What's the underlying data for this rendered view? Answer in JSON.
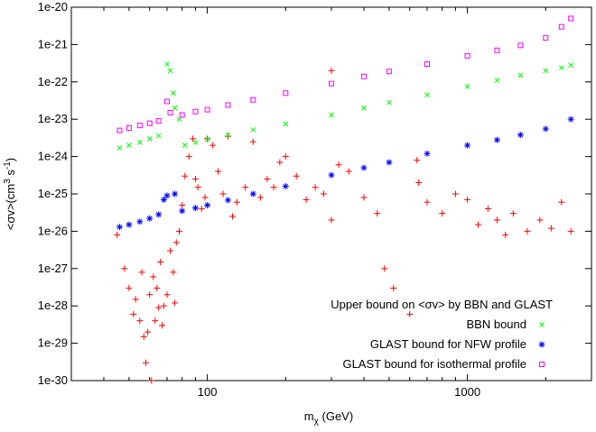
{
  "chart_data": {
    "type": "scatter",
    "title": "",
    "xlabel": "m",
    "xlabel_sub": "χ",
    "xlabel_unit": " (GeV)",
    "ylabel": "<σv>(cm",
    "ylabel_sup1": "3",
    "ylabel_mid": " s",
    "ylabel_sup2": "-1",
    "ylabel_end": ")",
    "x_scale": "log",
    "y_scale": "log",
    "xlim": [
      30,
      3000
    ],
    "ylim": [
      1e-30,
      1e-20
    ],
    "x_ticks": [
      {
        "value": 100,
        "label": "100"
      },
      {
        "value": 1000,
        "label": "1000"
      }
    ],
    "y_ticks": [
      {
        "value": 1e-20,
        "label": "1e-20"
      },
      {
        "value": 1e-21,
        "label": "1e-21"
      },
      {
        "value": 1e-22,
        "label": "1e-22"
      },
      {
        "value": 1e-23,
        "label": "1e-23"
      },
      {
        "value": 1e-24,
        "label": "1e-24"
      },
      {
        "value": 1e-25,
        "label": "1e-25"
      },
      {
        "value": 1e-26,
        "label": "1e-26"
      },
      {
        "value": 1e-27,
        "label": "1e-27"
      },
      {
        "value": 1e-28,
        "label": "1e-28"
      },
      {
        "value": 1e-29,
        "label": "1e-29"
      },
      {
        "value": 1e-30,
        "label": "1e-30"
      }
    ],
    "grid": false,
    "legend_position": "bottom-right",
    "legend_title": "Upper bound on <σv> by BBN and GLAST",
    "series": [
      {
        "name": "",
        "marker": "plus",
        "color": "#ff0000",
        "points": [
          [
            45,
            8e-27
          ],
          [
            48,
            1e-27
          ],
          [
            50,
            3e-28
          ],
          [
            52,
            6e-29
          ],
          [
            53,
            1.5e-28
          ],
          [
            55,
            4e-29
          ],
          [
            56,
            8e-28
          ],
          [
            57,
            1.5e-29
          ],
          [
            58,
            3e-30
          ],
          [
            59,
            2e-29
          ],
          [
            60,
            2e-28
          ],
          [
            61,
            1e-30
          ],
          [
            62,
            6e-28
          ],
          [
            63,
            4e-29
          ],
          [
            64,
            3e-28
          ],
          [
            65,
            9e-29
          ],
          [
            66,
            1.5e-27
          ],
          [
            67,
            3e-29
          ],
          [
            68,
            1e-28
          ],
          [
            70,
            2e-28
          ],
          [
            72,
            3e-27
          ],
          [
            74,
            8e-28
          ],
          [
            75,
            1.2e-28
          ],
          [
            76,
            5e-27
          ],
          [
            78,
            1e-26
          ],
          [
            80,
            5e-26
          ],
          [
            82,
            3e-25
          ],
          [
            85,
            1e-24
          ],
          [
            88,
            3e-24
          ],
          [
            90,
            2.5e-25
          ],
          [
            92,
            1.5e-25
          ],
          [
            95,
            4e-26
          ],
          [
            98,
            8e-26
          ],
          [
            100,
            3e-24
          ],
          [
            105,
            2e-24
          ],
          [
            110,
            4e-25
          ],
          [
            115,
            1e-25
          ],
          [
            120,
            3.5e-24
          ],
          [
            125,
            2.5e-26
          ],
          [
            130,
            6e-26
          ],
          [
            140,
            1.5e-25
          ],
          [
            150,
            2.5e-24
          ],
          [
            160,
            8e-26
          ],
          [
            170,
            2.5e-25
          ],
          [
            180,
            1.5e-25
          ],
          [
            190,
            7e-25
          ],
          [
            200,
            1e-24
          ],
          [
            220,
            3e-25
          ],
          [
            240,
            7e-26
          ],
          [
            260,
            1.5e-25
          ],
          [
            280,
            1e-25
          ],
          [
            300,
            2e-26
          ],
          [
            320,
            6e-25
          ],
          [
            350,
            4e-25
          ],
          [
            400,
            8e-26
          ],
          [
            450,
            3e-26
          ],
          [
            480,
            1e-27
          ],
          [
            520,
            3e-28
          ],
          [
            600,
            6e-29
          ],
          [
            650,
            2e-25
          ],
          [
            700,
            6e-26
          ],
          [
            800,
            3e-26
          ],
          [
            900,
            1e-25
          ],
          [
            1000,
            7e-26
          ],
          [
            1100,
            1.5e-26
          ],
          [
            1200,
            4e-26
          ],
          [
            1300,
            2e-26
          ],
          [
            1400,
            8e-27
          ],
          [
            1500,
            3e-26
          ],
          [
            1700,
            1e-26
          ],
          [
            1900,
            2e-26
          ],
          [
            2100,
            1.2e-26
          ],
          [
            2300,
            6e-26
          ],
          [
            2500,
            1e-26
          ],
          [
            300,
            2e-22
          ],
          [
            640,
            8e-25
          ]
        ]
      },
      {
        "name": "BBN bound",
        "marker": "cross",
        "color": "#00ff00",
        "points": [
          [
            46,
            1.7e-24
          ],
          [
            50,
            2e-24
          ],
          [
            55,
            2.4e-24
          ],
          [
            60,
            3e-24
          ],
          [
            65,
            3.6e-24
          ],
          [
            70,
            3e-22
          ],
          [
            72,
            2e-22
          ],
          [
            74,
            5e-23
          ],
          [
            75,
            2e-23
          ],
          [
            78,
            1e-23
          ],
          [
            82,
            2e-24
          ],
          [
            90,
            2.4e-24
          ],
          [
            100,
            2.9e-24
          ],
          [
            120,
            3.8e-24
          ],
          [
            150,
            5.2e-24
          ],
          [
            200,
            7.5e-24
          ],
          [
            300,
            1.3e-23
          ],
          [
            400,
            2e-23
          ],
          [
            500,
            2.8e-23
          ],
          [
            700,
            4.5e-23
          ],
          [
            1000,
            7.5e-23
          ],
          [
            1300,
            1.1e-22
          ],
          [
            1600,
            1.5e-22
          ],
          [
            2000,
            2e-22
          ],
          [
            2300,
            2.4e-22
          ],
          [
            2500,
            2.8e-22
          ]
        ]
      },
      {
        "name": "GLAST bound for NFW profile",
        "marker": "star",
        "color": "#0000ff",
        "points": [
          [
            46,
            1.3e-26
          ],
          [
            50,
            1.5e-26
          ],
          [
            55,
            1.8e-26
          ],
          [
            60,
            2.2e-26
          ],
          [
            65,
            2.8e-26
          ],
          [
            68,
            7e-26
          ],
          [
            70,
            9e-26
          ],
          [
            75,
            1e-25
          ],
          [
            80,
            3.5e-26
          ],
          [
            90,
            4.2e-26
          ],
          [
            100,
            5e-26
          ],
          [
            120,
            6.8e-26
          ],
          [
            150,
            1e-25
          ],
          [
            200,
            1.6e-25
          ],
          [
            300,
            3.2e-25
          ],
          [
            400,
            5e-25
          ],
          [
            500,
            7e-25
          ],
          [
            700,
            1.2e-24
          ],
          [
            1000,
            2e-24
          ],
          [
            1300,
            2.8e-24
          ],
          [
            1600,
            3.8e-24
          ],
          [
            2000,
            5.5e-24
          ],
          [
            2500,
            1e-23
          ]
        ]
      },
      {
        "name": "GLAST bound for isothermal profile",
        "marker": "square",
        "color": "#ff00ff",
        "points": [
          [
            46,
            5e-24
          ],
          [
            50,
            5.8e-24
          ],
          [
            55,
            6.8e-24
          ],
          [
            60,
            7.8e-24
          ],
          [
            65,
            9e-24
          ],
          [
            70,
            3e-23
          ],
          [
            72,
            1.5e-23
          ],
          [
            80,
            1.3e-23
          ],
          [
            90,
            1.6e-23
          ],
          [
            100,
            1.8e-23
          ],
          [
            120,
            2.4e-23
          ],
          [
            150,
            3.3e-23
          ],
          [
            200,
            5e-23
          ],
          [
            300,
            9e-23
          ],
          [
            400,
            1.4e-22
          ],
          [
            500,
            1.9e-22
          ],
          [
            700,
            3e-22
          ],
          [
            1000,
            5e-22
          ],
          [
            1300,
            7e-22
          ],
          [
            1600,
            9.5e-22
          ],
          [
            2000,
            1.5e-21
          ],
          [
            2300,
            3e-21
          ],
          [
            2500,
            5e-21
          ]
        ]
      }
    ]
  }
}
